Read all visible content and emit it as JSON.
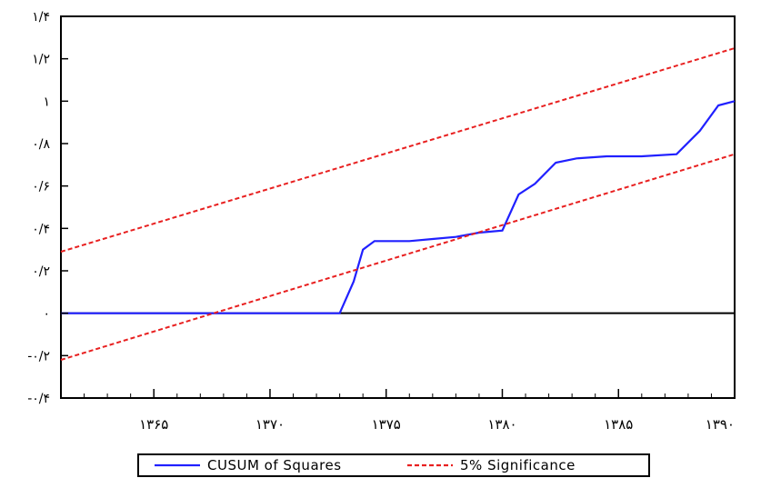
{
  "chart_data": {
    "type": "line",
    "x_ticks": [
      {
        "value": 1365,
        "label": "۱۳۶۵"
      },
      {
        "value": 1370,
        "label": "۱۳۷۰"
      },
      {
        "value": 1375,
        "label": "۱۳۷۵"
      },
      {
        "value": 1380,
        "label": "۱۳۸۰"
      },
      {
        "value": 1385,
        "label": "۱۳۸۵"
      },
      {
        "value": 1390,
        "label": "۱۳۹۰"
      }
    ],
    "y_ticks": [
      {
        "value": -0.4,
        "label": "-۰/۴"
      },
      {
        "value": -0.2,
        "label": "-۰/۲"
      },
      {
        "value": 0.0,
        "label": "۰"
      },
      {
        "value": 0.2,
        "label": "۰/۲"
      },
      {
        "value": 0.4,
        "label": "۰/۴"
      },
      {
        "value": 0.6,
        "label": "۰/۶"
      },
      {
        "value": 0.8,
        "label": "۰/۸"
      },
      {
        "value": 1.0,
        "label": "۱"
      },
      {
        "value": 1.2,
        "label": "۱/۲"
      },
      {
        "value": 1.4,
        "label": "۱/۴"
      }
    ],
    "xlim": [
      1361,
      1390
    ],
    "ylim": [
      -0.4,
      1.4
    ],
    "zero_line": true,
    "grid": false,
    "legend_position": "bottom-center",
    "series": [
      {
        "name": "CUSUM of Squares",
        "color": "#2020ff",
        "style": "solid",
        "x": [
          1361,
          1373,
          1373.6,
          1374.0,
          1374.5,
          1375.0,
          1376.0,
          1377.0,
          1378.0,
          1379.0,
          1380.0,
          1380.7,
          1381.4,
          1382.3,
          1383.2,
          1384.5,
          1386.0,
          1387.5,
          1388.5,
          1389.3,
          1390.0
        ],
        "y": [
          0.0,
          0.0,
          0.15,
          0.3,
          0.34,
          0.34,
          0.34,
          0.35,
          0.36,
          0.38,
          0.39,
          0.56,
          0.61,
          0.71,
          0.73,
          0.74,
          0.74,
          0.75,
          0.86,
          0.98,
          1.0
        ]
      },
      {
        "name": "5% Significance",
        "color": "#e82020",
        "style": "dashed",
        "x": [
          1361,
          1390
        ],
        "y": [
          0.29,
          1.25
        ]
      },
      {
        "name": "5% Significance lower",
        "color": "#e82020",
        "style": "dashed",
        "x": [
          1361,
          1390
        ],
        "y": [
          -0.22,
          0.75
        ]
      }
    ],
    "legend": [
      {
        "label": "CUSUM of Squares",
        "color": "#2020ff",
        "style": "solid"
      },
      {
        "label": "5% Significance",
        "color": "#e82020",
        "style": "dashed"
      }
    ]
  }
}
